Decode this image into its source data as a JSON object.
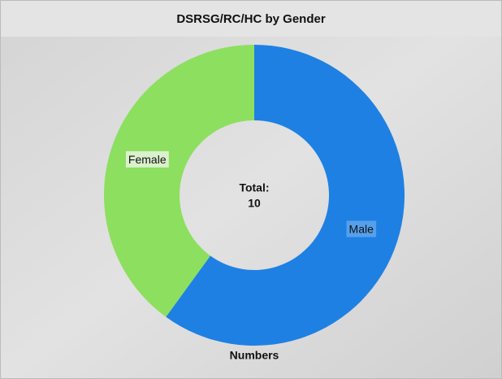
{
  "chart_data": {
    "type": "donut",
    "title": "DSRSG/RC/HC by Gender",
    "categories": [
      "Male",
      "Female"
    ],
    "values": [
      6,
      4
    ],
    "colors": [
      "#1f80e3",
      "#8ddf5f"
    ],
    "center_label": "Total:",
    "total": 10,
    "series_name": "Numbers"
  }
}
